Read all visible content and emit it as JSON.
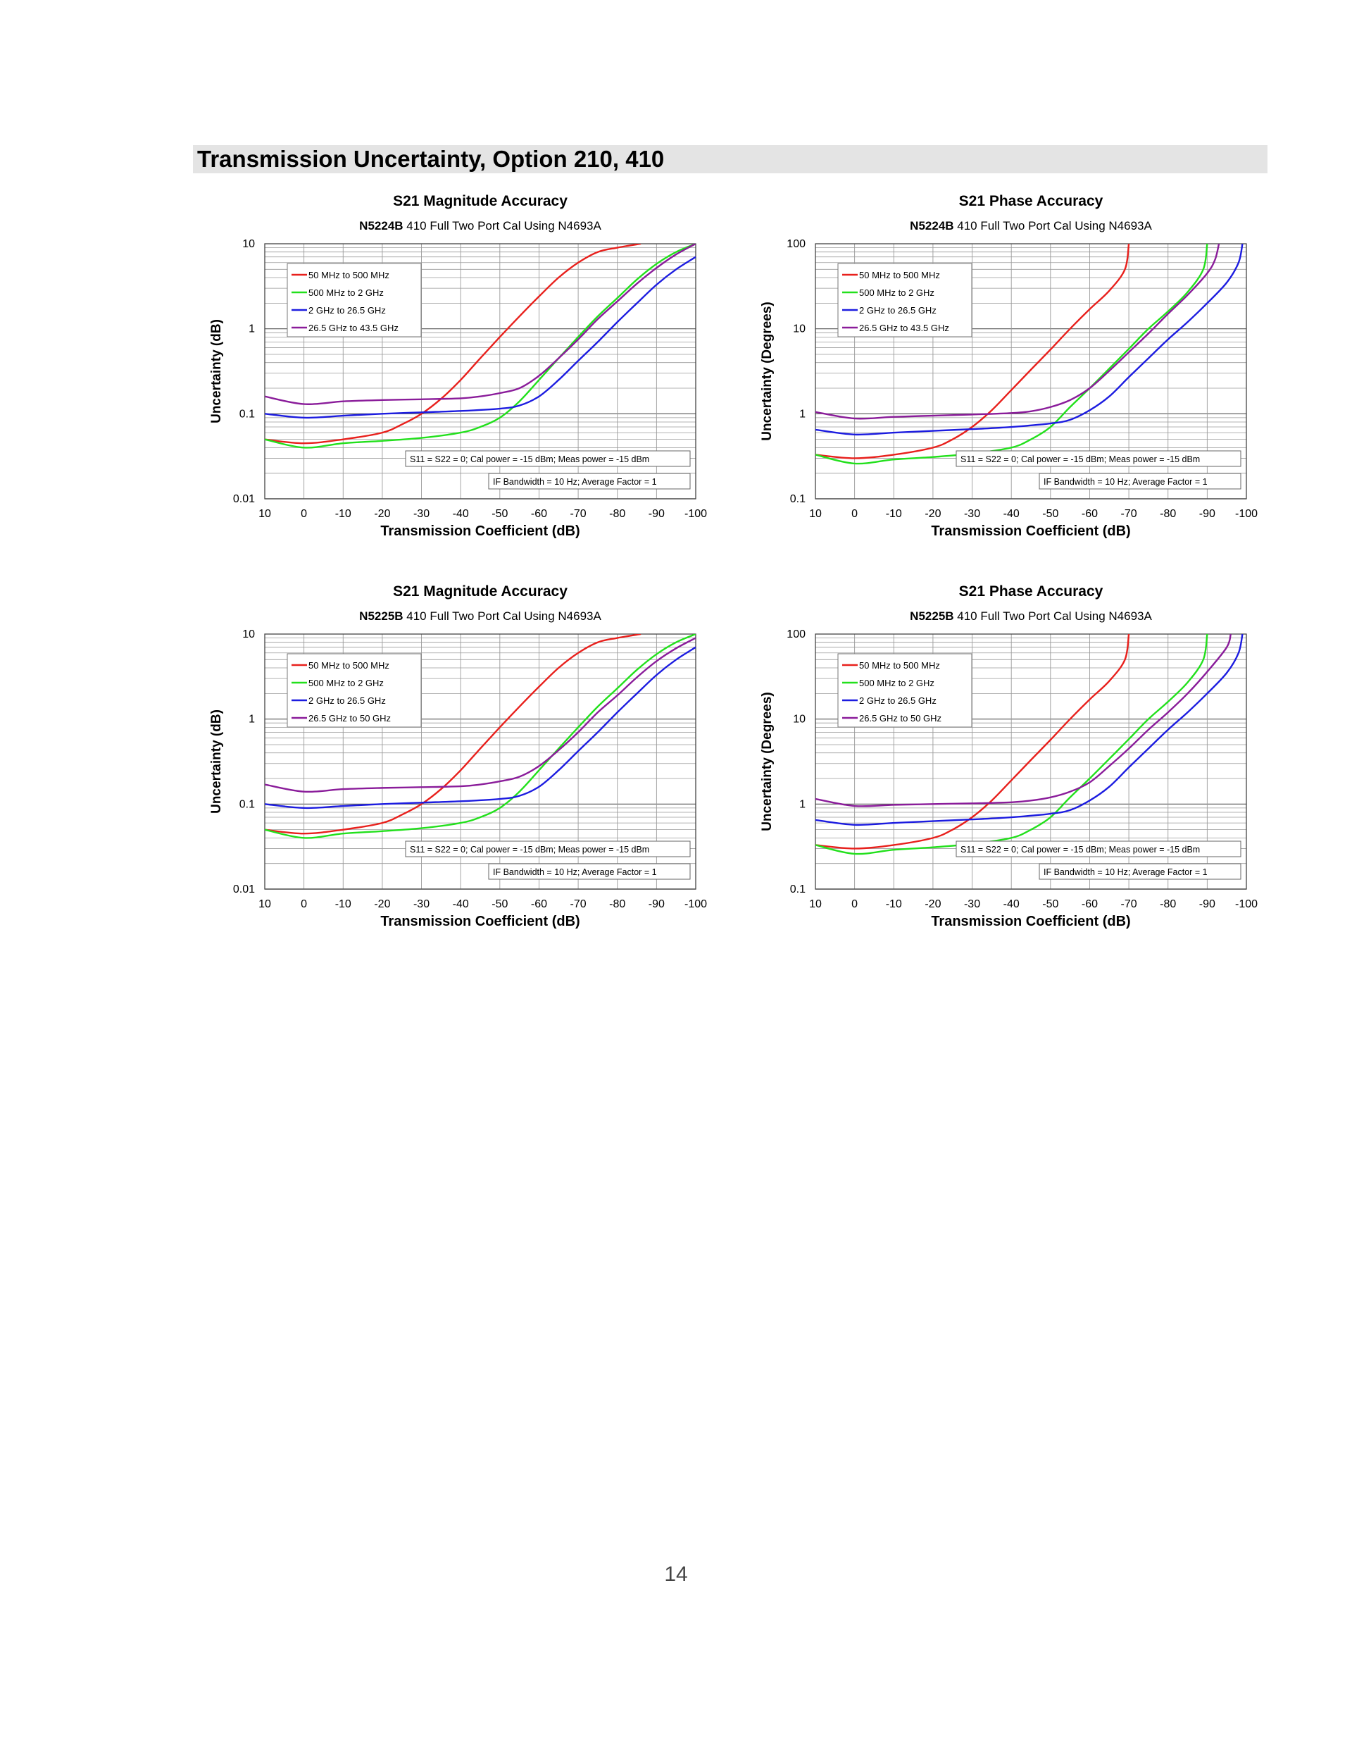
{
  "section": {
    "title": "Transmission Uncertainty, Option 210, 410"
  },
  "page_number": "14",
  "chart_data": [
    {
      "id": "mag_n5224b",
      "type": "line",
      "title": "S21 Magnitude Accuracy",
      "subtitle_model": "N5224B",
      "subtitle_rest": "410 Full Two Port Cal Using N4693A",
      "xlabel": "Transmission Coefficient (dB)",
      "ylabel": "Uncertainty (dB)",
      "xlim": [
        10,
        -100
      ],
      "xticks": [
        "10",
        "0",
        "-10",
        "-20",
        "-30",
        "-40",
        "-50",
        "-60",
        "-70",
        "-80",
        "-90",
        "-100"
      ],
      "ylim": [
        0.01,
        10
      ],
      "yscale": "log",
      "yticks": [
        "0.01",
        "0.1",
        "1",
        "10"
      ],
      "grid": true,
      "legend_position": "top-left",
      "notes": [
        "S11 = S22 = 0; Cal power = -15 dBm; Meas power = -15 dBm",
        "IF Bandwidth = 10 Hz; Average Factor = 1"
      ],
      "series": [
        {
          "name": "50 MHz to 500 MHz",
          "color": "#e8201c",
          "x": [
            10,
            0,
            -10,
            -20,
            -25,
            -30,
            -35,
            -40,
            -45,
            -50,
            -55,
            -60,
            -65,
            -70,
            -75,
            -80,
            -86
          ],
          "y": [
            0.05,
            0.045,
            0.05,
            0.06,
            0.075,
            0.1,
            0.15,
            0.25,
            0.45,
            0.8,
            1.4,
            2.4,
            4,
            6,
            8,
            9,
            10
          ]
        },
        {
          "name": "500 MHz to 2 GHz",
          "color": "#22e01c",
          "x": [
            10,
            0,
            -10,
            -20,
            -30,
            -40,
            -45,
            -50,
            -55,
            -60,
            -65,
            -70,
            -75,
            -80,
            -85,
            -90,
            -95,
            -100
          ],
          "y": [
            0.05,
            0.04,
            0.045,
            0.048,
            0.052,
            0.06,
            0.07,
            0.09,
            0.14,
            0.25,
            0.45,
            0.8,
            1.4,
            2.3,
            3.8,
            5.8,
            8,
            10
          ]
        },
        {
          "name": "2 GHz to 26.5 GHz",
          "color": "#1c1ce0",
          "x": [
            10,
            0,
            -10,
            -20,
            -30,
            -40,
            -50,
            -55,
            -60,
            -65,
            -70,
            -75,
            -80,
            -85,
            -90,
            -95,
            -100
          ],
          "y": [
            0.1,
            0.09,
            0.095,
            0.1,
            0.104,
            0.108,
            0.115,
            0.125,
            0.16,
            0.25,
            0.42,
            0.7,
            1.2,
            2,
            3.3,
            5,
            7
          ]
        },
        {
          "name": "26.5 GHz to 43.5 GHz",
          "color": "#8a1c9a",
          "x": [
            10,
            0,
            -10,
            -20,
            -30,
            -40,
            -45,
            -50,
            -55,
            -60,
            -65,
            -70,
            -75,
            -80,
            -85,
            -90,
            -95,
            -100
          ],
          "y": [
            0.16,
            0.13,
            0.14,
            0.145,
            0.148,
            0.152,
            0.16,
            0.175,
            0.2,
            0.28,
            0.45,
            0.75,
            1.3,
            2.1,
            3.4,
            5.2,
            7.5,
            10
          ]
        }
      ]
    },
    {
      "id": "phase_n5224b",
      "type": "line",
      "title": "S21 Phase Accuracy",
      "subtitle_model": "N5224B",
      "subtitle_rest": "410 Full Two Port Cal Using N4693A",
      "xlabel": "Transmission Coefficient (dB)",
      "ylabel": "Uncertainty (Degrees)",
      "xlim": [
        10,
        -100
      ],
      "xticks": [
        "10",
        "0",
        "-10",
        "-20",
        "-30",
        "-40",
        "-50",
        "-60",
        "-70",
        "-80",
        "-90",
        "-100"
      ],
      "ylim": [
        0.1,
        100
      ],
      "yscale": "log",
      "yticks": [
        "0.1",
        "1",
        "10",
        "100"
      ],
      "grid": true,
      "legend_position": "top-left",
      "notes": [
        "S11 = S22 = 0; Cal power = -15 dBm; Meas power = -15 dBm",
        "IF Bandwidth = 10 Hz; Average Factor = 1"
      ],
      "series": [
        {
          "name": "50 MHz to 500 MHz",
          "color": "#e8201c",
          "x": [
            10,
            0,
            -10,
            -20,
            -25,
            -30,
            -35,
            -40,
            -45,
            -50,
            -55,
            -60,
            -65,
            -69,
            -70
          ],
          "y": [
            0.33,
            0.3,
            0.33,
            0.4,
            0.5,
            0.7,
            1.1,
            1.9,
            3.3,
            5.7,
            10,
            17,
            28,
            50,
            100
          ]
        },
        {
          "name": "500 MHz to 2 GHz",
          "color": "#22e01c",
          "x": [
            10,
            0,
            -10,
            -20,
            -30,
            -40,
            -45,
            -50,
            -55,
            -60,
            -65,
            -70,
            -75,
            -80,
            -85,
            -89,
            -90
          ],
          "y": [
            0.33,
            0.26,
            0.29,
            0.31,
            0.34,
            0.4,
            0.5,
            0.7,
            1.2,
            2,
            3.4,
            5.8,
            10,
            16,
            27,
            50,
            100
          ]
        },
        {
          "name": "2 GHz to 26.5 GHz",
          "color": "#1c1ce0",
          "x": [
            10,
            0,
            -10,
            -20,
            -30,
            -40,
            -50,
            -55,
            -60,
            -65,
            -70,
            -75,
            -80,
            -85,
            -90,
            -95,
            -98,
            -99
          ],
          "y": [
            0.65,
            0.57,
            0.6,
            0.63,
            0.66,
            0.7,
            0.77,
            0.85,
            1.1,
            1.6,
            2.7,
            4.5,
            7.5,
            12,
            20,
            35,
            60,
            100
          ]
        },
        {
          "name": "26.5 GHz to 43.5 GHz",
          "color": "#8a1c9a",
          "x": [
            10,
            0,
            -10,
            -20,
            -30,
            -40,
            -45,
            -50,
            -55,
            -60,
            -65,
            -70,
            -75,
            -80,
            -85,
            -90,
            -92,
            -93
          ],
          "y": [
            1.05,
            0.88,
            0.92,
            0.95,
            0.98,
            1.02,
            1.07,
            1.2,
            1.45,
            2,
            3.2,
            5.3,
            8.8,
            15,
            25,
            45,
            65,
            100
          ]
        }
      ]
    },
    {
      "id": "mag_n5225b",
      "type": "line",
      "title": "S21 Magnitude Accuracy",
      "subtitle_model": "N5225B",
      "subtitle_rest": "410 Full Two Port Cal Using N4693A",
      "xlabel": "Transmission Coefficient (dB)",
      "ylabel": "Uncertainty (dB)",
      "xlim": [
        10,
        -100
      ],
      "xticks": [
        "10",
        "0",
        "-10",
        "-20",
        "-30",
        "-40",
        "-50",
        "-60",
        "-70",
        "-80",
        "-90",
        "-100"
      ],
      "ylim": [
        0.01,
        10
      ],
      "yscale": "log",
      "yticks": [
        "0.01",
        "0.1",
        "1",
        "10"
      ],
      "grid": true,
      "legend_position": "top-left",
      "notes": [
        "S11 = S22 = 0; Cal power = -15 dBm; Meas power = -15 dBm",
        "IF Bandwidth = 10 Hz; Average Factor = 1"
      ],
      "series": [
        {
          "name": "50 MHz to 500 MHz",
          "color": "#e8201c",
          "x": [
            10,
            0,
            -10,
            -20,
            -25,
            -30,
            -35,
            -40,
            -45,
            -50,
            -55,
            -60,
            -65,
            -70,
            -75,
            -80,
            -86
          ],
          "y": [
            0.05,
            0.045,
            0.05,
            0.06,
            0.075,
            0.1,
            0.15,
            0.25,
            0.45,
            0.8,
            1.4,
            2.4,
            4,
            6,
            8,
            9,
            10
          ]
        },
        {
          "name": "500 MHz to 2 GHz",
          "color": "#22e01c",
          "x": [
            10,
            0,
            -10,
            -20,
            -30,
            -40,
            -45,
            -50,
            -55,
            -60,
            -65,
            -70,
            -75,
            -80,
            -85,
            -90,
            -95,
            -100
          ],
          "y": [
            0.05,
            0.04,
            0.045,
            0.048,
            0.052,
            0.06,
            0.07,
            0.09,
            0.14,
            0.25,
            0.45,
            0.8,
            1.4,
            2.3,
            3.8,
            5.8,
            8,
            10
          ]
        },
        {
          "name": "2 GHz to 26.5 GHz",
          "color": "#1c1ce0",
          "x": [
            10,
            0,
            -10,
            -20,
            -30,
            -40,
            -50,
            -55,
            -60,
            -65,
            -70,
            -75,
            -80,
            -85,
            -90,
            -95,
            -100
          ],
          "y": [
            0.1,
            0.09,
            0.095,
            0.1,
            0.104,
            0.108,
            0.115,
            0.125,
            0.16,
            0.25,
            0.42,
            0.7,
            1.2,
            2,
            3.3,
            5,
            7
          ]
        },
        {
          "name": "26.5 GHz to 50 GHz",
          "color": "#8a1c9a",
          "x": [
            10,
            0,
            -10,
            -20,
            -30,
            -40,
            -45,
            -50,
            -55,
            -60,
            -65,
            -70,
            -75,
            -80,
            -85,
            -90,
            -95,
            -100
          ],
          "y": [
            0.17,
            0.14,
            0.15,
            0.155,
            0.158,
            0.162,
            0.17,
            0.185,
            0.21,
            0.28,
            0.43,
            0.7,
            1.2,
            1.9,
            3.1,
            4.8,
            6.8,
            9
          ]
        }
      ]
    },
    {
      "id": "phase_n5225b",
      "type": "line",
      "title": "S21 Phase Accuracy",
      "subtitle_model": "N5225B",
      "subtitle_rest": "410 Full Two Port Cal Using N4693A",
      "xlabel": "Transmission Coefficient (dB)",
      "ylabel": "Uncertainty (Degrees)",
      "xlim": [
        10,
        -100
      ],
      "xticks": [
        "10",
        "0",
        "-10",
        "-20",
        "-30",
        "-40",
        "-50",
        "-60",
        "-70",
        "-80",
        "-90",
        "-100"
      ],
      "ylim": [
        0.1,
        100
      ],
      "yscale": "log",
      "yticks": [
        "0.1",
        "1",
        "10",
        "100"
      ],
      "grid": true,
      "legend_position": "top-left",
      "notes": [
        "S11 = S22 = 0; Cal power = -15 dBm; Meas power = -15 dBm",
        "IF Bandwidth = 10 Hz; Average Factor = 1"
      ],
      "series": [
        {
          "name": "50 MHz to 500 MHz",
          "color": "#e8201c",
          "x": [
            10,
            0,
            -10,
            -20,
            -25,
            -30,
            -35,
            -40,
            -45,
            -50,
            -55,
            -60,
            -65,
            -69,
            -70
          ],
          "y": [
            0.33,
            0.3,
            0.33,
            0.4,
            0.5,
            0.7,
            1.1,
            1.9,
            3.3,
            5.7,
            10,
            17,
            28,
            50,
            100
          ]
        },
        {
          "name": "500 MHz to 2 GHz",
          "color": "#22e01c",
          "x": [
            10,
            0,
            -10,
            -20,
            -30,
            -40,
            -45,
            -50,
            -55,
            -60,
            -65,
            -70,
            -75,
            -80,
            -85,
            -89,
            -90
          ],
          "y": [
            0.33,
            0.26,
            0.29,
            0.31,
            0.34,
            0.4,
            0.5,
            0.7,
            1.2,
            2,
            3.4,
            5.8,
            10,
            16,
            27,
            50,
            100
          ]
        },
        {
          "name": "2 GHz to 26.5 GHz",
          "color": "#1c1ce0",
          "x": [
            10,
            0,
            -10,
            -20,
            -30,
            -40,
            -50,
            -55,
            -60,
            -65,
            -70,
            -75,
            -80,
            -85,
            -90,
            -95,
            -98,
            -99
          ],
          "y": [
            0.65,
            0.57,
            0.6,
            0.63,
            0.66,
            0.7,
            0.77,
            0.85,
            1.1,
            1.6,
            2.7,
            4.5,
            7.5,
            12,
            20,
            35,
            60,
            100
          ]
        },
        {
          "name": "26.5 GHz to 50 GHz",
          "color": "#8a1c9a",
          "x": [
            10,
            0,
            -10,
            -20,
            -30,
            -40,
            -45,
            -50,
            -55,
            -60,
            -65,
            -70,
            -75,
            -80,
            -85,
            -90,
            -95,
            -96
          ],
          "y": [
            1.15,
            0.95,
            0.98,
            1.0,
            1.02,
            1.05,
            1.1,
            1.2,
            1.4,
            1.8,
            2.8,
            4.5,
            7.5,
            12,
            20,
            36,
            70,
            100
          ]
        }
      ]
    }
  ]
}
